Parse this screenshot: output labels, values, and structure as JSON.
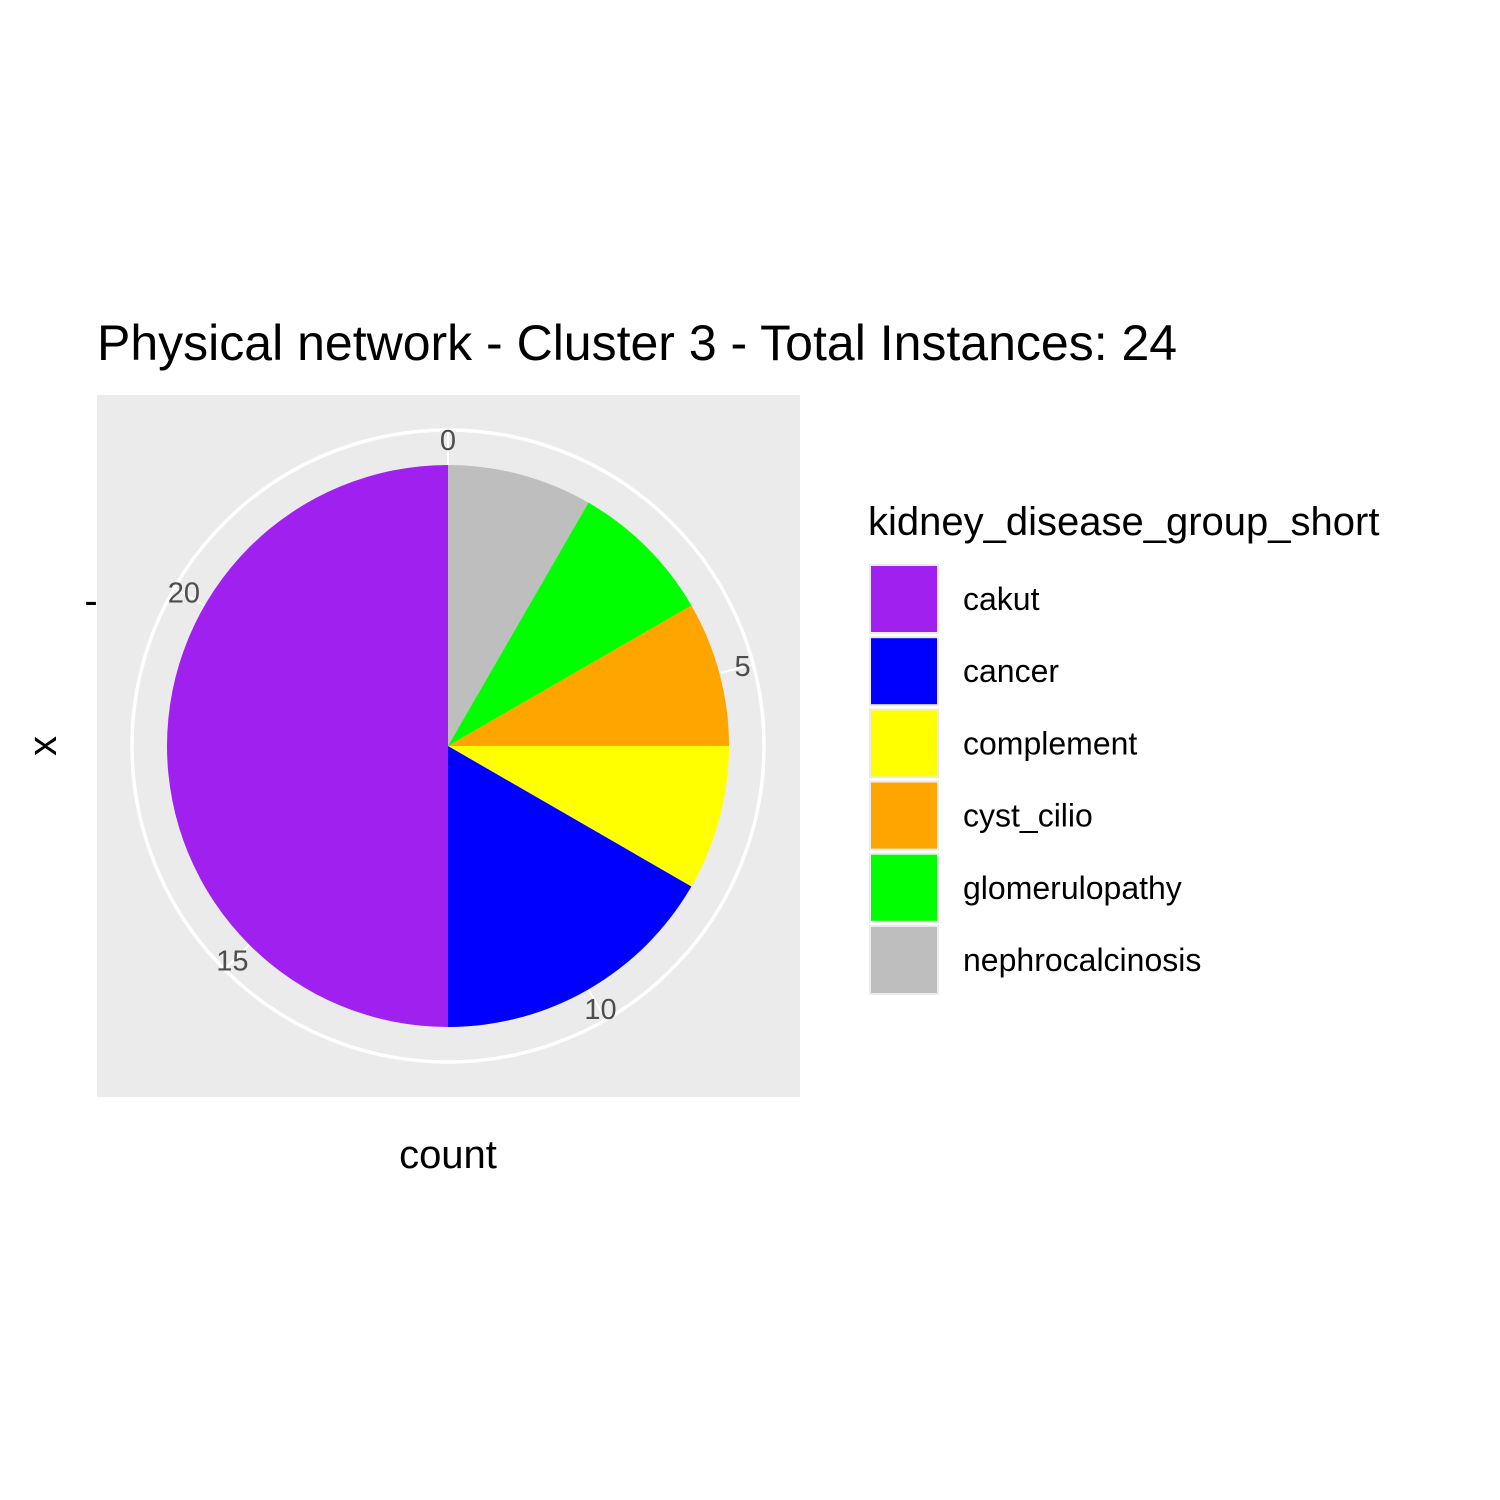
{
  "chart_data": {
    "type": "pie",
    "title": "Physical network - Cluster 3 - Total Instances: 24",
    "xlabel": "count",
    "ylabel": "x",
    "y_tick_label": "-",
    "total": 24,
    "theta_ticks": [
      0,
      5,
      10,
      15,
      20
    ],
    "grid": true,
    "legend": {
      "title": "kidney_disease_group_short",
      "placement": "right"
    },
    "series": [
      {
        "name": "cakut",
        "value": 12,
        "color": "#A020F0"
      },
      {
        "name": "cancer",
        "value": 4,
        "color": "#0000FF"
      },
      {
        "name": "complement",
        "value": 2,
        "color": "#FFFF00"
      },
      {
        "name": "cyst_cilio",
        "value": 2,
        "color": "#FFA500"
      },
      {
        "name": "glomerulopathy",
        "value": 2,
        "color": "#00FF00"
      },
      {
        "name": "nephrocalcinosis",
        "value": 2,
        "color": "#BEBEBE"
      }
    ],
    "stack_order_clockwise": [
      "nephrocalcinosis",
      "glomerulopathy",
      "cyst_cilio",
      "complement",
      "cancer",
      "cakut"
    ]
  }
}
